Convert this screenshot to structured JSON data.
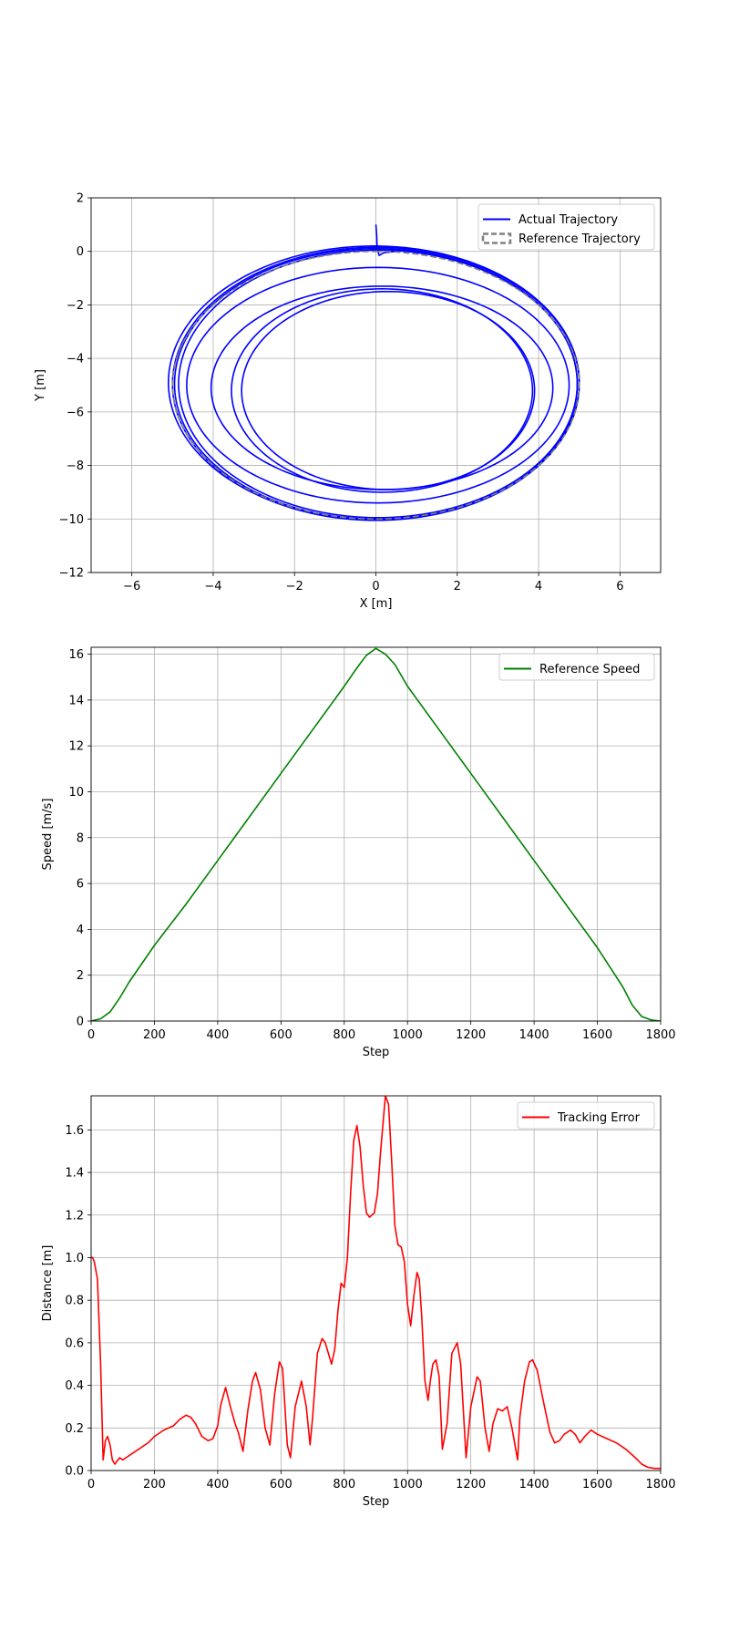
{
  "chart_data": [
    {
      "type": "line",
      "title": "",
      "xlabel": "X [m]",
      "ylabel": "Y [m]",
      "xlim": [
        -7,
        7
      ],
      "ylim": [
        -12,
        2
      ],
      "xticks": [
        -6,
        -4,
        -2,
        0,
        2,
        4,
        6
      ],
      "yticks": [
        -12,
        -10,
        -8,
        -6,
        -4,
        -2,
        0,
        2
      ],
      "xtick_labels": [
        "−6",
        "−4",
        "−2",
        "0",
        "2",
        "4",
        "6"
      ],
      "ytick_labels": [
        "−12",
        "−10",
        "−8",
        "−6",
        "−4",
        "−2",
        "0",
        "2"
      ],
      "grid": true,
      "legend_position": "upper right",
      "series": [
        {
          "name": "Actual Trajectory",
          "color": "#0000ff",
          "style": "solid",
          "start_segment": [
            [
              0.0,
              1.0
            ],
            [
              0.02,
              0.6
            ],
            [
              0.03,
              0.1
            ],
            [
              0.08,
              -0.15
            ],
            [
              0.2,
              -0.05
            ],
            [
              0.5,
              0.0
            ]
          ],
          "loops": [
            {
              "cx": 0.0,
              "cy": -4.95,
              "rx": 5.0,
              "ry": 5.1
            },
            {
              "cx": 0.0,
              "cy": -4.95,
              "rx": 4.95,
              "ry": 5.05
            },
            {
              "cx": 0.05,
              "cy": -4.95,
              "rx": 4.9,
              "ry": 5.0
            },
            {
              "cx": -0.05,
              "cy": -4.9,
              "rx": 5.05,
              "ry": 5.1
            },
            {
              "cx": 0.05,
              "cy": -5.0,
              "rx": 4.7,
              "ry": 4.4
            },
            {
              "cx": 0.15,
              "cy": -5.1,
              "rx": 4.2,
              "ry": 3.8
            },
            {
              "cx": 0.15,
              "cy": -5.2,
              "rx": 3.7,
              "ry": 3.8
            },
            {
              "cx": 0.3,
              "cy": -5.2,
              "rx": 3.6,
              "ry": 3.7
            }
          ]
        },
        {
          "name": "Reference Trajectory",
          "color": "#808080",
          "style": "dashed",
          "loops": [
            {
              "cx": 0.0,
              "cy": -5.0,
              "rx": 5.0,
              "ry": 5.0
            }
          ]
        }
      ]
    },
    {
      "type": "line",
      "title": "",
      "xlabel": "Step",
      "ylabel": "Speed [m/s]",
      "xlim": [
        0,
        1800
      ],
      "ylim": [
        0,
        16.3
      ],
      "xticks": [
        0,
        200,
        400,
        600,
        800,
        1000,
        1200,
        1400,
        1600,
        1800
      ],
      "yticks": [
        0,
        2,
        4,
        6,
        8,
        10,
        12,
        14,
        16
      ],
      "grid": true,
      "legend_position": "upper right",
      "series": [
        {
          "name": "Reference Speed",
          "color": "#008000",
          "style": "solid",
          "x": [
            0,
            30,
            60,
            90,
            120,
            200,
            300,
            400,
            500,
            600,
            700,
            800,
            840,
            870,
            900,
            930,
            960,
            1000,
            1100,
            1200,
            1300,
            1400,
            1500,
            1600,
            1680,
            1710,
            1740,
            1770,
            1800
          ],
          "y": [
            0.0,
            0.1,
            0.4,
            1.0,
            1.7,
            3.3,
            5.1,
            7.0,
            8.9,
            10.8,
            12.7,
            14.6,
            15.4,
            15.95,
            16.25,
            16.0,
            15.55,
            14.6,
            12.7,
            10.8,
            8.9,
            7.0,
            5.1,
            3.2,
            1.5,
            0.7,
            0.2,
            0.05,
            0.0
          ]
        }
      ]
    },
    {
      "type": "line",
      "title": "",
      "xlabel": "Step",
      "ylabel": "Distance [m]",
      "xlim": [
        0,
        1800
      ],
      "ylim": [
        0,
        1.76
      ],
      "xticks": [
        0,
        200,
        400,
        600,
        800,
        1000,
        1200,
        1400,
        1600,
        1800
      ],
      "yticks": [
        0.0,
        0.2,
        0.4,
        0.6,
        0.8,
        1.0,
        1.2,
        1.4,
        1.6
      ],
      "ytick_labels": [
        "0.0",
        "0.2",
        "0.4",
        "0.6",
        "0.8",
        "1.0",
        "1.2",
        "1.4",
        "1.6"
      ],
      "grid": true,
      "legend_position": "upper right",
      "series": [
        {
          "name": "Tracking Error",
          "color": "#ff0000",
          "style": "solid",
          "x": [
            0,
            5,
            10,
            20,
            30,
            38,
            45,
            52,
            60,
            67,
            75,
            80,
            90,
            100,
            110,
            130,
            150,
            180,
            200,
            230,
            260,
            280,
            300,
            315,
            330,
            350,
            370,
            385,
            400,
            410,
            425,
            440,
            455,
            465,
            480,
            495,
            510,
            520,
            535,
            550,
            565,
            580,
            595,
            605,
            620,
            630,
            645,
            665,
            680,
            692,
            700,
            715,
            730,
            740,
            760,
            770,
            780,
            790,
            800,
            810,
            820,
            830,
            840,
            850,
            860,
            870,
            880,
            895,
            905,
            915,
            930,
            940,
            950,
            960,
            970,
            980,
            990,
            1000,
            1010,
            1020,
            1030,
            1037,
            1045,
            1055,
            1065,
            1072,
            1080,
            1090,
            1100,
            1110,
            1125,
            1140,
            1157,
            1168,
            1185,
            1200,
            1220,
            1230,
            1245,
            1258,
            1270,
            1285,
            1300,
            1315,
            1330,
            1348,
            1355,
            1370,
            1385,
            1395,
            1410,
            1430,
            1450,
            1465,
            1480,
            1495,
            1515,
            1530,
            1545,
            1560,
            1580,
            1600,
            1630,
            1660,
            1690,
            1720,
            1740,
            1760,
            1780,
            1800
          ],
          "y": [
            1.0,
            1.0,
            0.98,
            0.9,
            0.5,
            0.05,
            0.14,
            0.16,
            0.12,
            0.05,
            0.03,
            0.04,
            0.06,
            0.05,
            0.06,
            0.08,
            0.1,
            0.13,
            0.16,
            0.19,
            0.21,
            0.24,
            0.26,
            0.25,
            0.22,
            0.16,
            0.14,
            0.15,
            0.21,
            0.31,
            0.39,
            0.3,
            0.22,
            0.18,
            0.09,
            0.28,
            0.42,
            0.46,
            0.38,
            0.2,
            0.12,
            0.36,
            0.51,
            0.48,
            0.12,
            0.06,
            0.3,
            0.42,
            0.3,
            0.12,
            0.25,
            0.55,
            0.62,
            0.6,
            0.5,
            0.57,
            0.75,
            0.88,
            0.86,
            1.0,
            1.3,
            1.55,
            1.62,
            1.52,
            1.34,
            1.21,
            1.19,
            1.21,
            1.3,
            1.5,
            1.76,
            1.72,
            1.45,
            1.15,
            1.06,
            1.05,
            0.98,
            0.78,
            0.68,
            0.82,
            0.93,
            0.9,
            0.72,
            0.42,
            0.33,
            0.42,
            0.5,
            0.52,
            0.44,
            0.1,
            0.22,
            0.55,
            0.6,
            0.5,
            0.06,
            0.3,
            0.44,
            0.42,
            0.2,
            0.09,
            0.22,
            0.29,
            0.28,
            0.3,
            0.2,
            0.05,
            0.25,
            0.42,
            0.51,
            0.52,
            0.47,
            0.32,
            0.18,
            0.13,
            0.14,
            0.17,
            0.19,
            0.17,
            0.13,
            0.16,
            0.19,
            0.17,
            0.15,
            0.13,
            0.1,
            0.06,
            0.03,
            0.015,
            0.01,
            0.01
          ]
        }
      ]
    }
  ]
}
